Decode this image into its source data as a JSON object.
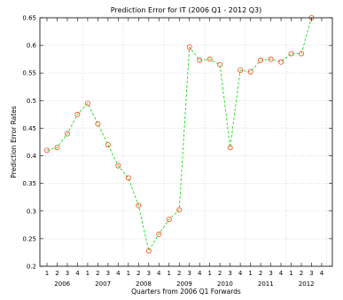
{
  "chart_data": {
    "type": "line",
    "title": "Prediction Error for IT (2006 Q1 - 2012 Q3)",
    "xlabel": "Quarters from 2006 Q1 Forwards",
    "ylabel": "Prediction Error Rates",
    "ylim": [
      0.2,
      0.65
    ],
    "yticks": [
      "0.2",
      "0.25",
      "0.3",
      "0.35",
      "0.4",
      "0.45",
      "0.5",
      "0.55",
      "0.6",
      "0.65"
    ],
    "x_tick_labels": [
      "1",
      "2",
      "3",
      "4",
      "1",
      "2",
      "3",
      "4",
      "1",
      "2",
      "3",
      "4",
      "1",
      "2",
      "3",
      "4",
      "1",
      "2",
      "3",
      "4",
      "1",
      "2",
      "3",
      "4",
      "1",
      "2",
      "3",
      "4"
    ],
    "years": [
      "2006",
      "2007",
      "2008",
      "2009",
      "2010",
      "2011",
      "2012"
    ],
    "grid": true,
    "series": [
      {
        "values": [
          0.41,
          0.415,
          0.44,
          0.475,
          0.495,
          0.458,
          0.42,
          0.382,
          0.36,
          0.31,
          0.228,
          0.258,
          0.285,
          0.302,
          0.597,
          0.573,
          0.575,
          0.565,
          0.415,
          0.555,
          0.552,
          0.573,
          0.575,
          0.57,
          0.585,
          0.585,
          0.65
        ],
        "line_color": "#22dd22",
        "marker_color": "#ff4a1a",
        "line_style": "dashed",
        "marker": "circle"
      }
    ]
  }
}
